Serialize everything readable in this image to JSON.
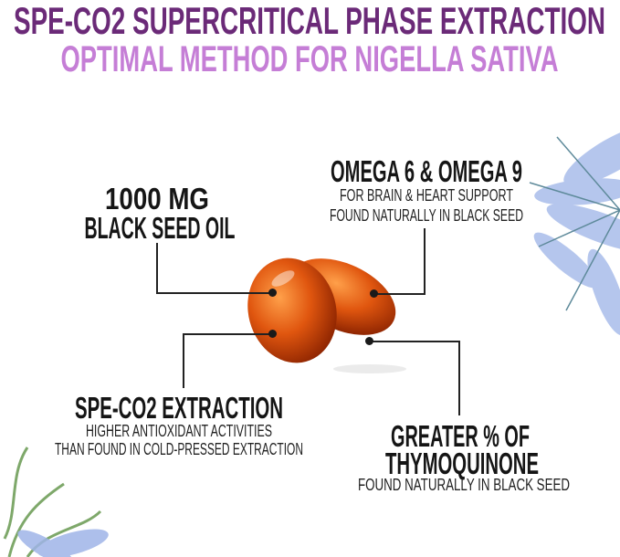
{
  "header": {
    "title": "SPE-CO2 SUPERCRITICAL PHASE EXTRACTION",
    "subtitle": "OPTIMAL METHOD  FOR NIGELLA SATIVA",
    "title_color": "#6b2a78",
    "subtitle_color": "#c57ed6"
  },
  "callouts": {
    "dose": {
      "line1": "1000 MG",
      "line2": "BLACK SEED OIL"
    },
    "omega": {
      "title": "OMEGA 6 & OMEGA 9",
      "line1": "FOR BRAIN &  HEART SUPPORT",
      "line2": "FOUND NATURALLY IN BLACK SEED"
    },
    "extraction": {
      "title": "SPE-CO2 EXTRACTION",
      "line1": "HIGHER ANTIOXIDANT ACTIVITIES",
      "line2": "THAN FOUND IN COLD-PRESSED EXTRACTION"
    },
    "thymo": {
      "line1": "GREATER % OF",
      "line2": "THYMOQUINONE",
      "line3": "FOUND NATURALLY IN BLACK SEED"
    }
  },
  "colors": {
    "capsule": "#d9480f",
    "flower": "#9fb4e8"
  }
}
